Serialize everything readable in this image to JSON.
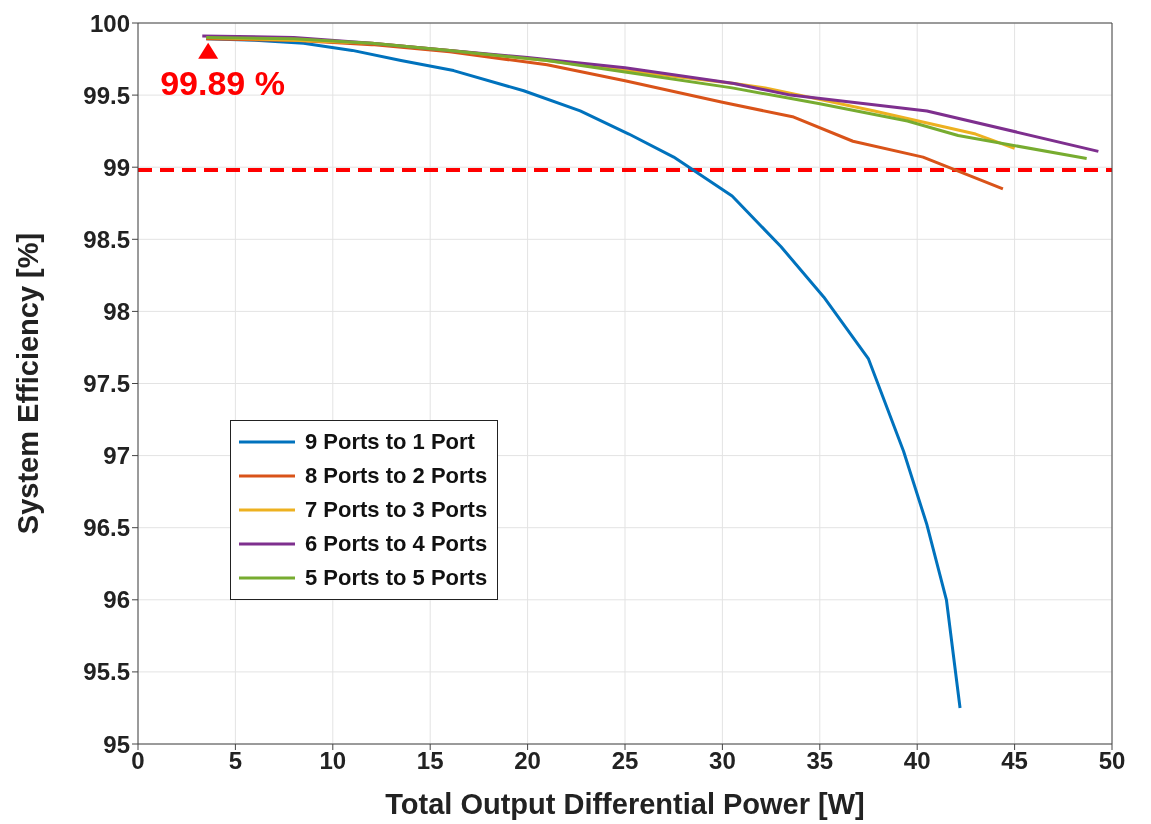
{
  "chart_data": {
    "type": "line",
    "xlabel": "Total Output Differential Power [W]",
    "ylabel": "System Efficiency [%]",
    "xlim": [
      0,
      50
    ],
    "xticks": [
      0,
      5,
      10,
      15,
      20,
      25,
      30,
      35,
      40,
      45,
      50
    ],
    "ylim": [
      95,
      100
    ],
    "yticks": [
      95,
      95.5,
      96,
      96.5,
      97,
      97.5,
      98,
      98.5,
      99,
      99.5,
      100
    ],
    "grid": true,
    "legend": "bottom left",
    "marker": "none",
    "line_style": "solid",
    "series": [
      {
        "name": "9 Ports to 1 Port",
        "color": "#0072bd",
        "x": [
          3.5,
          6,
          8.5,
          11,
          13.5,
          16.2,
          19.8,
          22.7,
          25.2,
          27.5,
          30.5,
          33,
          35.2,
          37.5,
          39.3,
          40.5,
          41.5,
          42.2
        ],
        "values": [
          99.89,
          99.88,
          99.86,
          99.81,
          99.74,
          99.67,
          99.53,
          99.39,
          99.23,
          99.07,
          98.8,
          98.45,
          98.1,
          97.67,
          97.03,
          96.52,
          96.0,
          95.25
        ]
      },
      {
        "name": "8 Ports to 2 Ports",
        "color": "#d95319",
        "x": [
          3.5,
          8,
          12,
          16,
          21,
          25,
          30,
          33.6,
          36.7,
          40.3,
          44.4
        ],
        "values": [
          99.89,
          99.88,
          99.85,
          99.8,
          99.71,
          99.6,
          99.45,
          99.35,
          99.18,
          99.07,
          98.85
        ]
      },
      {
        "name": "7 Ports to 3 Ports",
        "color": "#edb120",
        "x": [
          3.5,
          8,
          12,
          16,
          21,
          25,
          30.6,
          32.2,
          37.8,
          43,
          45
        ],
        "values": [
          99.9,
          99.88,
          99.86,
          99.81,
          99.74,
          99.67,
          99.58,
          99.55,
          99.39,
          99.23,
          99.13
        ]
      },
      {
        "name": "6 Ports to 4 Ports",
        "color": "#7e2f8e",
        "x": [
          3.3,
          8,
          12,
          16,
          20,
          25,
          30.6,
          33.5,
          40.5,
          49.3
        ],
        "values": [
          99.91,
          99.9,
          99.86,
          99.81,
          99.76,
          99.69,
          99.58,
          99.5,
          99.39,
          99.11
        ]
      },
      {
        "name": "5 Ports to 5 Ports",
        "color": "#77ac30",
        "x": [
          3.5,
          8,
          12,
          16,
          21,
          25,
          30.5,
          35,
          39.5,
          42.1,
          48.7
        ],
        "values": [
          99.9,
          99.89,
          99.86,
          99.81,
          99.74,
          99.66,
          99.55,
          99.44,
          99.32,
          99.22,
          99.06
        ]
      }
    ],
    "ref_lines": [
      {
        "axis": "y",
        "value": 98.98,
        "color": "#ff0000",
        "line_style": "dashed"
      }
    ],
    "annotations": [
      {
        "text": "99.89 %",
        "x": 3.5,
        "y": 99.89
      }
    ]
  }
}
